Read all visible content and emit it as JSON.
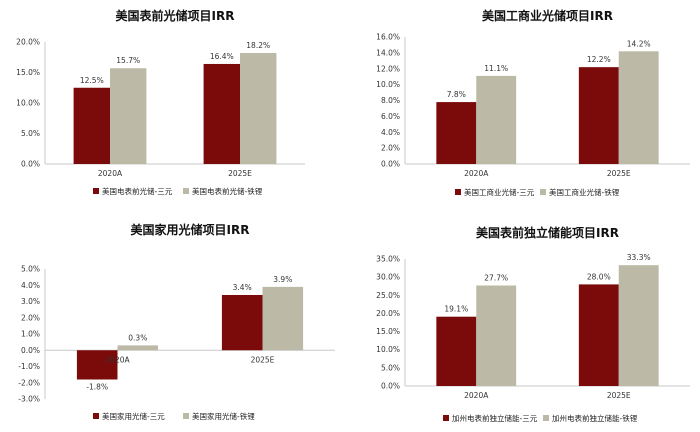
{
  "chart_data": [
    {
      "type": "bar",
      "title": "美国表前光储项目IRR",
      "categories": [
        "2020A",
        "2025E"
      ],
      "series": [
        {
          "name": "美国电表前光储-三元",
          "values": [
            12.5,
            16.4
          ],
          "labels": [
            "12.5%",
            "16.4%"
          ]
        },
        {
          "name": "美国电表前光储-铁锂",
          "values": [
            15.7,
            18.2
          ],
          "labels": [
            "15.7%",
            "18.2%"
          ]
        }
      ],
      "yticks": [
        "0.0%",
        "5.0%",
        "10.0%",
        "15.0%",
        "20.0%"
      ],
      "ylim": [
        0,
        20
      ],
      "ystep": 5,
      "xlabel": "",
      "ylabel": "",
      "grid": false,
      "legend": "bottom"
    },
    {
      "type": "bar",
      "title": "美国工商业光储项目IRR",
      "categories": [
        "2020A",
        "2025E"
      ],
      "series": [
        {
          "name": "美国工商业光储-三元",
          "values": [
            7.8,
            12.2
          ],
          "labels": [
            "7.8%",
            "12.2%"
          ]
        },
        {
          "name": "美国工商业光储-铁锂",
          "values": [
            11.1,
            14.2
          ],
          "labels": [
            "11.1%",
            "14.2%"
          ]
        }
      ],
      "yticks": [
        "0.0%",
        "2.0%",
        "4.0%",
        "6.0%",
        "8.0%",
        "10.0%",
        "12.0%",
        "14.0%",
        "16.0%"
      ],
      "ylim": [
        0,
        16
      ],
      "ystep": 2,
      "xlabel": "",
      "ylabel": "",
      "grid": false,
      "legend": "bottom"
    },
    {
      "type": "bar",
      "title": "美国家用光储项目IRR",
      "categories": [
        "2020A",
        "2025E"
      ],
      "series": [
        {
          "name": "美国家用光储-三元",
          "values": [
            -1.8,
            3.4
          ],
          "labels": [
            "-1.8%",
            "3.4%"
          ]
        },
        {
          "name": "美国家用光储-铁锂",
          "values": [
            0.3,
            3.9
          ],
          "labels": [
            "0.3%",
            "3.9%"
          ]
        }
      ],
      "yticks": [
        "-3.0%",
        "-2.0%",
        "-1.0%",
        "0.0%",
        "1.0%",
        "2.0%",
        "3.0%",
        "4.0%",
        "5.0%"
      ],
      "ylim": [
        -3,
        5
      ],
      "ystep": 1,
      "xlabel": "",
      "ylabel": "",
      "grid": false,
      "legend": "bottom"
    },
    {
      "type": "bar",
      "title": "美国表前独立储能项目IRR",
      "categories": [
        "2020A",
        "2025E"
      ],
      "series": [
        {
          "name": "加州电表前独立储能-三元",
          "values": [
            19.1,
            28.0
          ],
          "labels": [
            "19.1%",
            "28.0%"
          ]
        },
        {
          "name": "加州电表前独立储能-铁锂",
          "values": [
            27.7,
            33.3
          ],
          "labels": [
            "27.7%",
            "33.3%"
          ]
        }
      ],
      "yticks": [
        "0.0%",
        "5.0%",
        "10.0%",
        "15.0%",
        "20.0%",
        "25.0%",
        "30.0%",
        "35.0%"
      ],
      "ylim": [
        0,
        35
      ],
      "ystep": 5,
      "xlabel": "",
      "ylabel": "",
      "grid": false,
      "legend": "bottom"
    }
  ],
  "colors": {
    "series1": "#7b0a0a",
    "series2": "#bcbaa6",
    "axis": "#c8c8c8",
    "text": "#333333"
  }
}
